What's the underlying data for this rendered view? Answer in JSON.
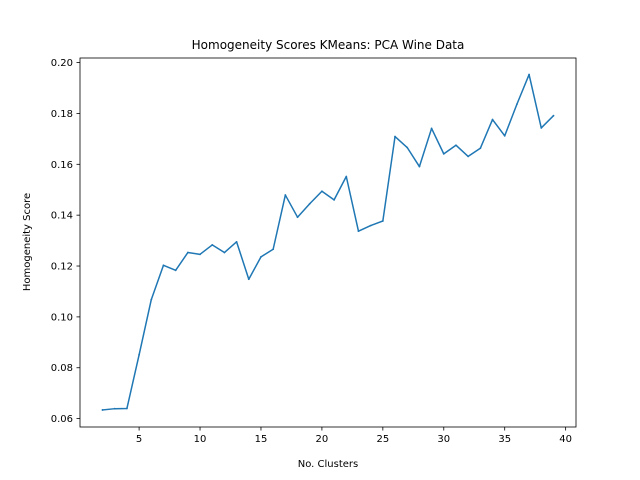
{
  "chart_data": {
    "type": "line",
    "title": "Homogeneity Scores KMeans: PCA Wine Data",
    "xlabel": "No. Clusters",
    "ylabel": "Homogeneity Score",
    "xlim": [
      0.15,
      40.85
    ],
    "ylim": [
      0.0567,
      0.2018
    ],
    "xticks": [
      5,
      10,
      15,
      20,
      25,
      30,
      35,
      40
    ],
    "xtick_labels": [
      "5",
      "10",
      "15",
      "20",
      "25",
      "30",
      "35",
      "40"
    ],
    "yticks": [
      0.06,
      0.08,
      0.1,
      0.12,
      0.14,
      0.16,
      0.18,
      0.2
    ],
    "ytick_labels": [
      "0.06",
      "0.08",
      "0.10",
      "0.12",
      "0.14",
      "0.16",
      "0.18",
      "0.20"
    ],
    "grid": false,
    "series": [
      {
        "color": "#1f77b4",
        "x": [
          2,
          3,
          4,
          5,
          6,
          7,
          8,
          9,
          10,
          11,
          12,
          13,
          14,
          15,
          16,
          17,
          18,
          19,
          20,
          21,
          22,
          23,
          24,
          25,
          26,
          27,
          28,
          29,
          30,
          31,
          32,
          33,
          34,
          35,
          36,
          37,
          38,
          39
        ],
        "y": [
          0.0634,
          0.0639,
          0.064,
          0.0851,
          0.1068,
          0.1203,
          0.1183,
          0.1253,
          0.1246,
          0.1283,
          0.1253,
          0.1295,
          0.1148,
          0.1236,
          0.1266,
          0.1479,
          0.1392,
          0.1445,
          0.1494,
          0.146,
          0.1552,
          0.1337,
          0.1359,
          0.1377,
          0.1709,
          0.1666,
          0.1591,
          0.1741,
          0.1641,
          0.1675,
          0.1631,
          0.1663,
          0.1776,
          0.1712,
          0.1836,
          0.1953,
          0.1743,
          0.1791
        ]
      }
    ]
  }
}
